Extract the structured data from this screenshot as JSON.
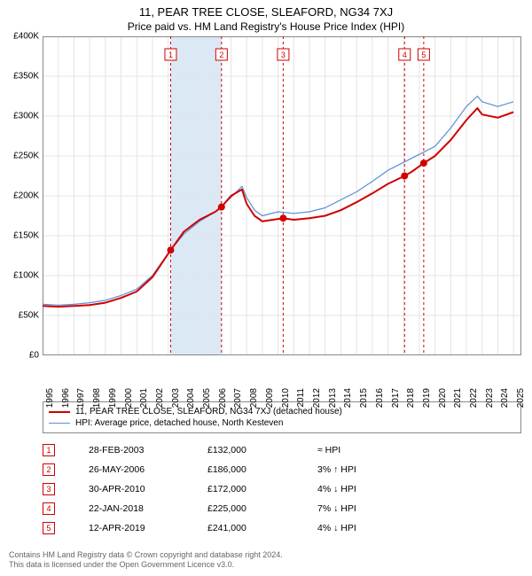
{
  "title": "11, PEAR TREE CLOSE, SLEAFORD, NG34 7XJ",
  "subtitle": "Price paid vs. HM Land Registry's House Price Index (HPI)",
  "chart": {
    "type": "line",
    "background_color": "#ffffff",
    "plot_border_color": "#888888",
    "grid_color": "#e4e4e4",
    "highlight_band_color": "#dbe9f6",
    "highlight_band_x": [
      2003.16,
      2006.4
    ],
    "x_axis": {
      "min": 1995,
      "max": 2025.5,
      "ticks": [
        1995,
        1996,
        1997,
        1998,
        1999,
        2000,
        2001,
        2002,
        2003,
        2004,
        2005,
        2006,
        2007,
        2008,
        2009,
        2010,
        2011,
        2012,
        2013,
        2014,
        2015,
        2016,
        2017,
        2018,
        2019,
        2020,
        2021,
        2022,
        2023,
        2024,
        2025
      ]
    },
    "y_axis": {
      "min": 0,
      "max": 400000,
      "tick_step": 50000,
      "tick_labels": [
        "£0",
        "£50K",
        "£100K",
        "£150K",
        "£200K",
        "£250K",
        "£300K",
        "£350K",
        "£400K"
      ]
    },
    "series": [
      {
        "name": "property",
        "label": "11, PEAR TREE CLOSE, SLEAFORD, NG34 7XJ (detached house)",
        "color": "#d00000",
        "line_width": 2,
        "data": [
          [
            1995,
            62000
          ],
          [
            1996,
            61000
          ],
          [
            1997,
            62000
          ],
          [
            1998,
            63000
          ],
          [
            1999,
            66000
          ],
          [
            2000,
            72000
          ],
          [
            2001,
            80000
          ],
          [
            2002,
            98000
          ],
          [
            2003.16,
            132000
          ],
          [
            2004,
            155000
          ],
          [
            2005,
            170000
          ],
          [
            2006,
            180000
          ],
          [
            2006.4,
            186000
          ],
          [
            2007,
            200000
          ],
          [
            2007.7,
            208000
          ],
          [
            2008,
            190000
          ],
          [
            2008.5,
            175000
          ],
          [
            2009,
            168000
          ],
          [
            2010,
            171000
          ],
          [
            2010.33,
            172000
          ],
          [
            2011,
            170000
          ],
          [
            2012,
            172000
          ],
          [
            2013,
            175000
          ],
          [
            2014,
            182000
          ],
          [
            2015,
            192000
          ],
          [
            2016,
            203000
          ],
          [
            2017,
            215000
          ],
          [
            2018.06,
            225000
          ],
          [
            2018.5,
            230000
          ],
          [
            2019.28,
            241000
          ],
          [
            2020,
            250000
          ],
          [
            2021,
            270000
          ],
          [
            2022,
            295000
          ],
          [
            2022.7,
            310000
          ],
          [
            2023,
            302000
          ],
          [
            2024,
            298000
          ],
          [
            2025,
            305000
          ]
        ]
      },
      {
        "name": "hpi",
        "label": "HPI: Average price, detached house, North Kesteven",
        "color": "#5b8fd6",
        "line_width": 1.2,
        "data": [
          [
            1995,
            64000
          ],
          [
            1996,
            63000
          ],
          [
            1997,
            64000
          ],
          [
            1998,
            66000
          ],
          [
            1999,
            69000
          ],
          [
            2000,
            75000
          ],
          [
            2001,
            83000
          ],
          [
            2002,
            100000
          ],
          [
            2003,
            128000
          ],
          [
            2004,
            152000
          ],
          [
            2005,
            168000
          ],
          [
            2006,
            180000
          ],
          [
            2007,
            198000
          ],
          [
            2007.7,
            212000
          ],
          [
            2008,
            198000
          ],
          [
            2008.5,
            182000
          ],
          [
            2009,
            175000
          ],
          [
            2010,
            180000
          ],
          [
            2011,
            178000
          ],
          [
            2012,
            180000
          ],
          [
            2013,
            185000
          ],
          [
            2014,
            195000
          ],
          [
            2015,
            205000
          ],
          [
            2016,
            218000
          ],
          [
            2017,
            232000
          ],
          [
            2018,
            242000
          ],
          [
            2019,
            252000
          ],
          [
            2020,
            262000
          ],
          [
            2021,
            285000
          ],
          [
            2022,
            312000
          ],
          [
            2022.7,
            325000
          ],
          [
            2023,
            318000
          ],
          [
            2024,
            312000
          ],
          [
            2025,
            318000
          ]
        ]
      }
    ],
    "sale_markers": [
      {
        "n": 1,
        "x": 2003.16,
        "y": 132000,
        "date": "28-FEB-2003",
        "price": "£132,000",
        "delta": "≈ HPI"
      },
      {
        "n": 2,
        "x": 2006.4,
        "y": 186000,
        "date": "26-MAY-2006",
        "price": "£186,000",
        "delta": "3% ↑ HPI"
      },
      {
        "n": 3,
        "x": 2010.33,
        "y": 172000,
        "date": "30-APR-2010",
        "price": "£172,000",
        "delta": "4% ↓ HPI"
      },
      {
        "n": 4,
        "x": 2018.06,
        "y": 225000,
        "date": "22-JAN-2018",
        "price": "£225,000",
        "delta": "7% ↓ HPI"
      },
      {
        "n": 5,
        "x": 2019.28,
        "y": 241000,
        "date": "12-APR-2019",
        "price": "£241,000",
        "delta": "4% ↓ HPI"
      }
    ],
    "marker_line_color": "#d00000",
    "marker_line_dash": "3,3",
    "marker_dot_color": "#d00000",
    "marker_dot_radius": 4,
    "marker_box_border": "#d00000",
    "marker_box_fill": "#ffffff",
    "marker_box_text_color": "#d00000",
    "marker_box_fontsize": 9
  },
  "footer_line1": "Contains HM Land Registry data © Crown copyright and database right 2024.",
  "footer_line2": "This data is licensed under the Open Government Licence v3.0."
}
